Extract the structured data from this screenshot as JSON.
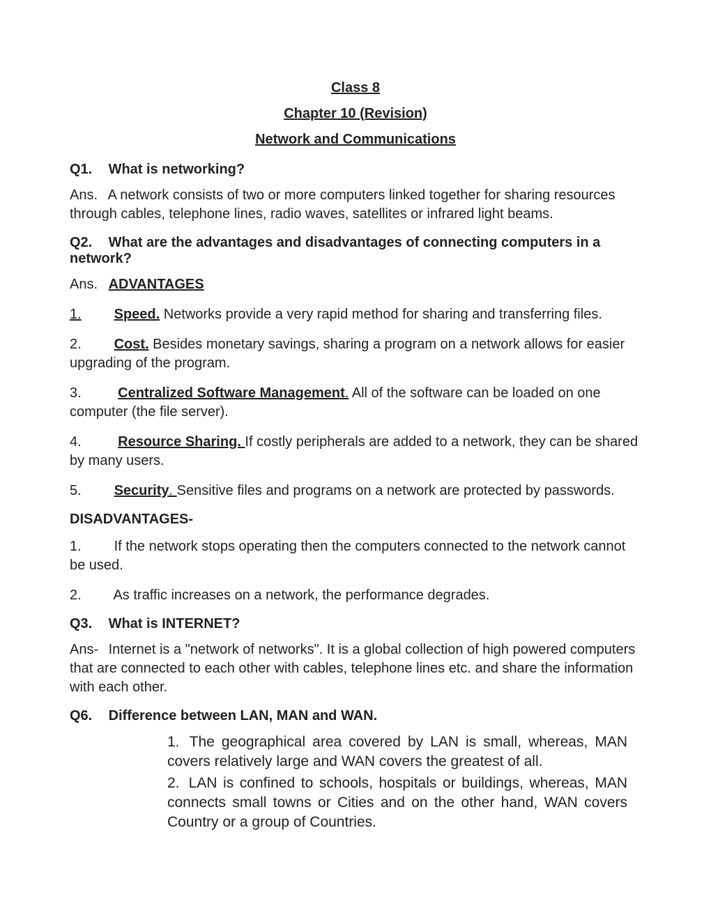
{
  "header": {
    "line1": "Class 8",
    "line2": "Chapter 10 (Revision)",
    "line3": "Network and Communications"
  },
  "q1": {
    "label": "Q1.",
    "text": "What is networking?",
    "ans_label": "Ans.",
    "ans": "A network consists of two or more computers linked together for sharing resources through cables, telephone lines, radio waves, satellites or infrared light beams."
  },
  "q2": {
    "label": "Q2.",
    "text": "What are the advantages and disadvantages of connecting computers in a network?",
    "ans_label": "Ans.",
    "adv_heading": "ADVANTAGES",
    "adv": [
      {
        "num": "1.",
        "title": "Speed.",
        "text": " Networks provide a very rapid method for sharing and transferring files.",
        "num_underline": true
      },
      {
        "num": "2.",
        "title": "Cost.",
        "text": " Besides monetary savings, sharing a program on a network allows for easier upgrading of the program."
      },
      {
        "num": "3.",
        "title": "Centralized Software Management",
        "dot": ".",
        "text": " All of the software can be loaded on one computer (the file server)."
      },
      {
        "num": "4.",
        "title": "Resource Sharing. ",
        "text": "If costly peripherals are added to a network, they can be shared by many users."
      },
      {
        "num": "5.",
        "title": "Security",
        "dot": ". ",
        "text": "Sensitive files and programs on a network are protected by passwords."
      }
    ],
    "disadv_heading": "DISADVANTAGES-",
    "disadv": [
      {
        "num": "1.",
        "text": "If the network stops operating then the computers connected to the network cannot be used."
      },
      {
        "num": "2.",
        "text": "As traffic increases on a network, the performance degrades."
      }
    ]
  },
  "q3": {
    "label": "Q3.",
    "text": "What is INTERNET?",
    "ans_label": "Ans-",
    "ans": "Internet is a \"network of networks\". It is a global collection of high powered computers that are connected to each other with cables, telephone lines etc. and share the information with each other."
  },
  "q6": {
    "label": "Q6.",
    "text": "Difference between LAN, MAN and WAN.",
    "items": [
      {
        "num": "1.",
        "text": "The geographical area covered by LAN is small, whereas, MAN covers relatively large and WAN covers the greatest of all."
      },
      {
        "num": "2.",
        "text": "LAN is confined to schools, hospitals or buildings, whereas, MAN connects small towns or Cities and on the other hand, WAN covers Country or a group of Countries."
      }
    ]
  }
}
